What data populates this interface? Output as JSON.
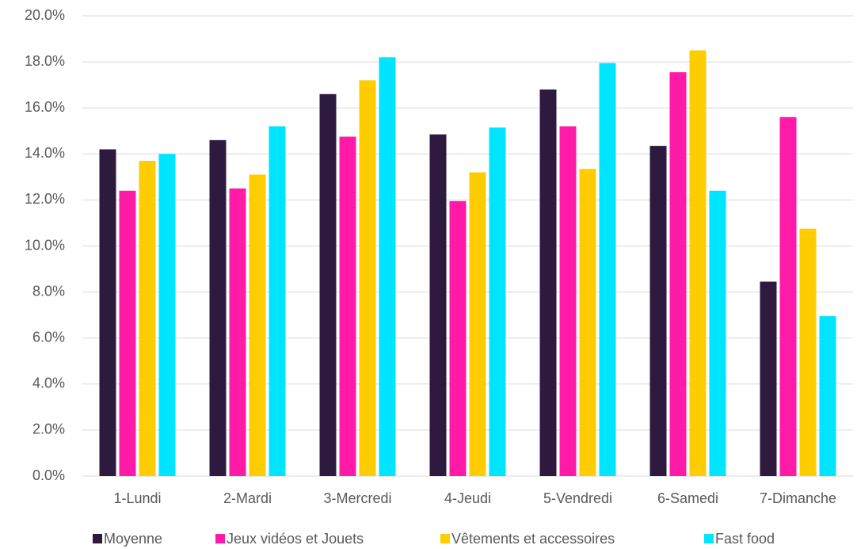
{
  "chart_data": {
    "type": "bar",
    "categories": [
      "1-Lundi",
      "2-Mardi",
      "3-Mercredi",
      "4-Jeudi",
      "5-Vendredi",
      "6-Samedi",
      "7-Dimanche"
    ],
    "series": [
      {
        "name": "Moyenne",
        "color": "#2e1a3f",
        "values": [
          14.2,
          14.6,
          16.6,
          14.85,
          16.8,
          14.35,
          8.45
        ]
      },
      {
        "name": "Jeux vidéos et Jouets",
        "color": "#ff1aa8",
        "values": [
          12.4,
          12.5,
          14.75,
          11.95,
          15.2,
          17.55,
          15.6
        ]
      },
      {
        "name": "Vêtements et accessoires",
        "color": "#ffcc00",
        "values": [
          13.7,
          13.1,
          17.2,
          13.2,
          13.35,
          18.5,
          10.75
        ]
      },
      {
        "name": "Fast food",
        "color": "#00e5ff",
        "values": [
          14.0,
          15.2,
          18.2,
          15.15,
          17.95,
          12.4,
          6.95
        ]
      }
    ],
    "ylim": [
      0,
      20
    ],
    "yticks": [
      {
        "value": 0,
        "label": "0.0%"
      },
      {
        "value": 2,
        "label": "2.0%"
      },
      {
        "value": 4,
        "label": "4.0%"
      },
      {
        "value": 6,
        "label": "6.0%"
      },
      {
        "value": 8,
        "label": "8.0%"
      },
      {
        "value": 10,
        "label": "10.0%"
      },
      {
        "value": 12,
        "label": "12.0%"
      },
      {
        "value": 14,
        "label": "14.0%"
      },
      {
        "value": 16,
        "label": "16.0%"
      },
      {
        "value": 18,
        "label": "18.0%"
      },
      {
        "value": 20,
        "label": "20.0%"
      }
    ],
    "grid": true,
    "legend": "bottom"
  }
}
